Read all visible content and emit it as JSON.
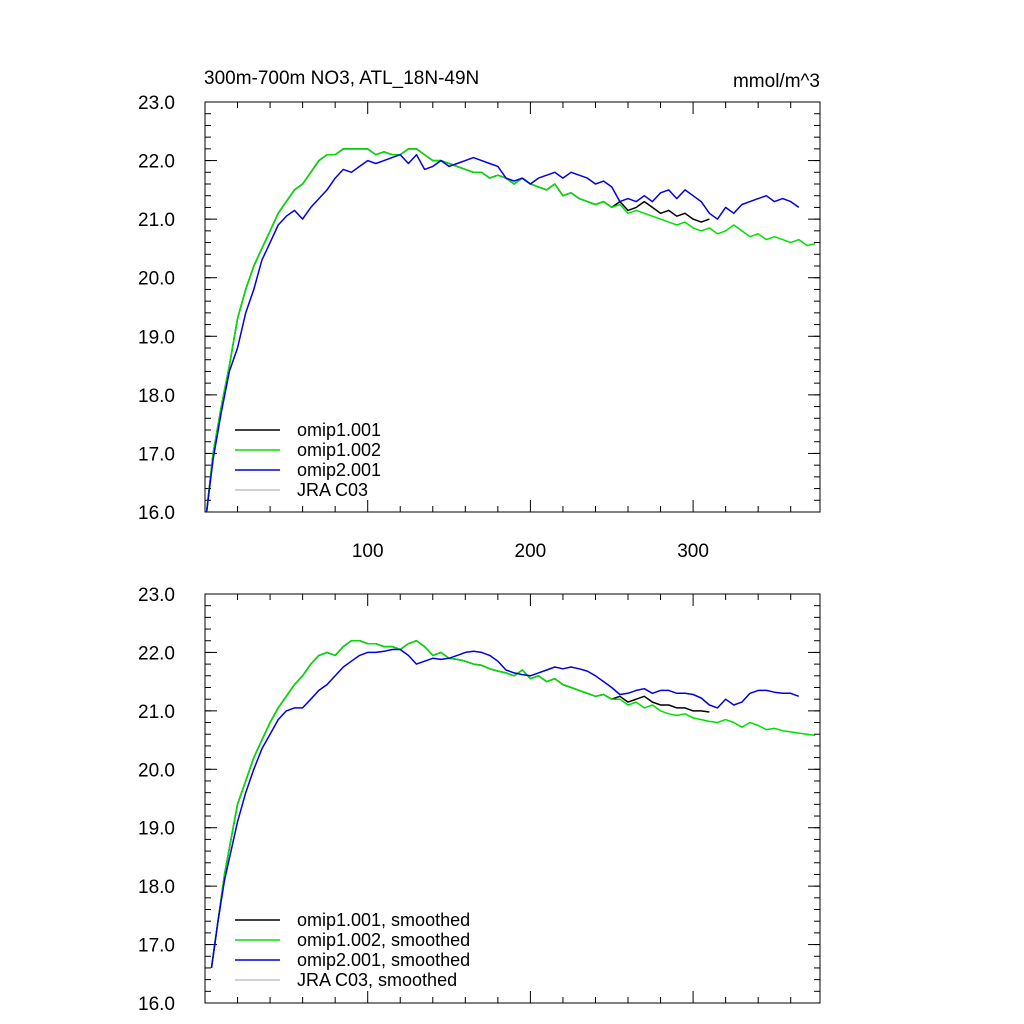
{
  "header": {
    "title": "300m-700m NO3, ATL_18N-49N",
    "units": "mmol/m^3"
  },
  "chart_data": [
    {
      "type": "line",
      "title": "300m-700m NO3, ATL_18N-49N",
      "units": "mmol/m^3",
      "xlim": [
        0,
        378
      ],
      "ylim": [
        16.0,
        23.0
      ],
      "x_ticks": [
        100,
        200,
        300
      ],
      "x_tick_labels": [
        "100",
        "200",
        "300"
      ],
      "y_ticks": [
        16.0,
        17.0,
        18.0,
        19.0,
        20.0,
        21.0,
        22.0,
        23.0
      ],
      "y_tick_labels": [
        "16.0",
        "17.0",
        "18.0",
        "19.0",
        "20.0",
        "21.0",
        "22.0",
        "23.0"
      ],
      "legend_position": "bottom-left",
      "series": [
        {
          "name": "omip1.001",
          "color": "#000000",
          "x": [
            1,
            5,
            10,
            15,
            20,
            25,
            30,
            35,
            40,
            45,
            50,
            55,
            60,
            65,
            70,
            75,
            80,
            85,
            90,
            95,
            100,
            105,
            110,
            115,
            120,
            125,
            130,
            135,
            140,
            145,
            150,
            155,
            160,
            165,
            170,
            175,
            180,
            185,
            190,
            195,
            200,
            205,
            210,
            215,
            220,
            225,
            230,
            235,
            240,
            245,
            250,
            255,
            260,
            265,
            270,
            275,
            280,
            285,
            290,
            295,
            300,
            305,
            310
          ],
          "y": [
            16.0,
            17.0,
            17.8,
            18.5,
            19.3,
            19.8,
            20.2,
            20.5,
            20.8,
            21.1,
            21.3,
            21.5,
            21.6,
            21.8,
            22.0,
            22.1,
            22.1,
            22.2,
            22.2,
            22.2,
            22.2,
            22.1,
            22.15,
            22.1,
            22.1,
            22.2,
            22.2,
            22.1,
            22.0,
            22.0,
            21.95,
            21.9,
            21.85,
            21.8,
            21.8,
            21.7,
            21.75,
            21.7,
            21.6,
            21.7,
            21.6,
            21.55,
            21.5,
            21.6,
            21.4,
            21.45,
            21.35,
            21.3,
            21.25,
            21.3,
            21.2,
            21.3,
            21.15,
            21.2,
            21.3,
            21.2,
            21.1,
            21.15,
            21.05,
            21.1,
            21.0,
            20.95,
            21.0
          ]
        },
        {
          "name": "omip1.002",
          "color": "#00e000",
          "x": [
            1,
            5,
            10,
            15,
            20,
            25,
            30,
            35,
            40,
            45,
            50,
            55,
            60,
            65,
            70,
            75,
            80,
            85,
            90,
            95,
            100,
            105,
            110,
            115,
            120,
            125,
            130,
            135,
            140,
            145,
            150,
            155,
            160,
            165,
            170,
            175,
            180,
            185,
            190,
            195,
            200,
            205,
            210,
            215,
            220,
            225,
            230,
            235,
            240,
            245,
            250,
            255,
            260,
            265,
            270,
            275,
            280,
            285,
            290,
            295,
            300,
            305,
            310,
            315,
            320,
            325,
            330,
            335,
            340,
            345,
            350,
            355,
            360,
            365,
            370,
            375
          ],
          "y": [
            16.0,
            17.0,
            17.8,
            18.5,
            19.3,
            19.8,
            20.2,
            20.5,
            20.8,
            21.1,
            21.3,
            21.5,
            21.6,
            21.8,
            22.0,
            22.1,
            22.1,
            22.2,
            22.2,
            22.2,
            22.2,
            22.1,
            22.15,
            22.1,
            22.1,
            22.2,
            22.2,
            22.1,
            22.0,
            22.0,
            21.95,
            21.9,
            21.85,
            21.8,
            21.8,
            21.7,
            21.75,
            21.7,
            21.6,
            21.7,
            21.6,
            21.55,
            21.5,
            21.6,
            21.4,
            21.45,
            21.35,
            21.3,
            21.25,
            21.3,
            21.2,
            21.25,
            21.1,
            21.15,
            21.1,
            21.05,
            21.0,
            20.95,
            20.9,
            20.95,
            20.85,
            20.8,
            20.85,
            20.75,
            20.8,
            20.9,
            20.8,
            20.7,
            20.75,
            20.65,
            20.7,
            20.65,
            20.6,
            20.65,
            20.55,
            20.58
          ]
        },
        {
          "name": "omip2.001",
          "color": "#0000e0",
          "x": [
            1,
            5,
            10,
            15,
            20,
            25,
            30,
            35,
            40,
            45,
            50,
            55,
            60,
            65,
            70,
            75,
            80,
            85,
            90,
            95,
            100,
            105,
            110,
            115,
            120,
            125,
            130,
            135,
            140,
            145,
            150,
            155,
            160,
            165,
            170,
            175,
            180,
            185,
            190,
            195,
            200,
            205,
            210,
            215,
            220,
            225,
            230,
            235,
            240,
            245,
            250,
            255,
            260,
            265,
            270,
            275,
            280,
            285,
            290,
            295,
            300,
            305,
            310,
            315,
            320,
            325,
            330,
            335,
            340,
            345,
            350,
            355,
            360,
            365
          ],
          "y": [
            16.0,
            16.9,
            17.7,
            18.4,
            18.8,
            19.4,
            19.8,
            20.3,
            20.6,
            20.9,
            21.05,
            21.15,
            21.0,
            21.2,
            21.35,
            21.5,
            21.7,
            21.85,
            21.8,
            21.9,
            22.0,
            21.95,
            22.0,
            22.05,
            22.1,
            21.95,
            22.1,
            21.85,
            21.9,
            22.0,
            21.9,
            21.95,
            22.0,
            22.05,
            22.0,
            21.95,
            21.9,
            21.7,
            21.65,
            21.7,
            21.6,
            21.7,
            21.75,
            21.8,
            21.7,
            21.8,
            21.75,
            21.7,
            21.6,
            21.65,
            21.55,
            21.3,
            21.35,
            21.3,
            21.4,
            21.3,
            21.45,
            21.5,
            21.35,
            21.5,
            21.4,
            21.3,
            21.1,
            21.0,
            21.2,
            21.1,
            21.25,
            21.3,
            21.35,
            21.4,
            21.3,
            21.35,
            21.3,
            21.2
          ]
        },
        {
          "name": "JRA C03",
          "color": "#c0c0c0",
          "x": [],
          "y": []
        }
      ]
    },
    {
      "type": "line",
      "title": "",
      "xlim": [
        0,
        378
      ],
      "ylim": [
        16.0,
        23.0
      ],
      "x_ticks": [
        100,
        200,
        300
      ],
      "x_tick_labels": [],
      "y_ticks": [
        16.0,
        17.0,
        18.0,
        19.0,
        20.0,
        21.0,
        22.0,
        23.0
      ],
      "y_tick_labels": [
        "16.0",
        "17.0",
        "18.0",
        "19.0",
        "20.0",
        "21.0",
        "22.0",
        "23.0"
      ],
      "legend_position": "bottom-left",
      "series": [
        {
          "name": "omip1.001, smoothed",
          "color": "#000000",
          "x": [
            4,
            8,
            12,
            16,
            20,
            25,
            30,
            35,
            40,
            45,
            50,
            55,
            60,
            65,
            70,
            75,
            80,
            85,
            90,
            95,
            100,
            105,
            110,
            115,
            120,
            125,
            130,
            135,
            140,
            145,
            150,
            155,
            160,
            165,
            170,
            175,
            180,
            185,
            190,
            195,
            200,
            205,
            210,
            215,
            220,
            225,
            230,
            235,
            240,
            245,
            250,
            255,
            260,
            265,
            270,
            275,
            280,
            285,
            290,
            295,
            300,
            305,
            310
          ],
          "y": [
            16.6,
            17.4,
            18.2,
            18.8,
            19.4,
            19.8,
            20.2,
            20.5,
            20.8,
            21.05,
            21.25,
            21.45,
            21.6,
            21.8,
            21.95,
            22.0,
            21.95,
            22.1,
            22.2,
            22.2,
            22.15,
            22.15,
            22.1,
            22.1,
            22.05,
            22.15,
            22.2,
            22.1,
            21.95,
            22.0,
            21.9,
            21.88,
            21.85,
            21.8,
            21.78,
            21.72,
            21.68,
            21.65,
            21.6,
            21.7,
            21.55,
            21.6,
            21.5,
            21.55,
            21.45,
            21.4,
            21.35,
            21.3,
            21.25,
            21.28,
            21.2,
            21.25,
            21.15,
            21.2,
            21.25,
            21.15,
            21.1,
            21.1,
            21.05,
            21.05,
            21.0,
            21.0,
            20.98
          ]
        },
        {
          "name": "omip1.002, smoothed",
          "color": "#00e000",
          "x": [
            4,
            8,
            12,
            16,
            20,
            25,
            30,
            35,
            40,
            45,
            50,
            55,
            60,
            65,
            70,
            75,
            80,
            85,
            90,
            95,
            100,
            105,
            110,
            115,
            120,
            125,
            130,
            135,
            140,
            145,
            150,
            155,
            160,
            165,
            170,
            175,
            180,
            185,
            190,
            195,
            200,
            205,
            210,
            215,
            220,
            225,
            230,
            235,
            240,
            245,
            250,
            255,
            260,
            265,
            270,
            275,
            280,
            285,
            290,
            295,
            300,
            305,
            310,
            315,
            320,
            325,
            330,
            335,
            340,
            345,
            350,
            355,
            360,
            365,
            370,
            375
          ],
          "y": [
            16.6,
            17.4,
            18.2,
            18.8,
            19.4,
            19.8,
            20.2,
            20.5,
            20.8,
            21.05,
            21.25,
            21.45,
            21.6,
            21.8,
            21.95,
            22.0,
            21.95,
            22.1,
            22.2,
            22.2,
            22.15,
            22.15,
            22.1,
            22.1,
            22.05,
            22.15,
            22.2,
            22.1,
            21.95,
            22.0,
            21.9,
            21.88,
            21.85,
            21.8,
            21.78,
            21.72,
            21.68,
            21.65,
            21.6,
            21.7,
            21.55,
            21.6,
            21.5,
            21.55,
            21.45,
            21.4,
            21.35,
            21.3,
            21.25,
            21.28,
            21.2,
            21.2,
            21.1,
            21.15,
            21.05,
            21.1,
            21.0,
            20.95,
            20.92,
            20.95,
            20.88,
            20.85,
            20.82,
            20.8,
            20.85,
            20.8,
            20.72,
            20.8,
            20.75,
            20.68,
            20.7,
            20.66,
            20.64,
            20.62,
            20.6,
            20.58
          ]
        },
        {
          "name": "omip2.001, smoothed",
          "color": "#0000e0",
          "x": [
            4,
            8,
            12,
            16,
            20,
            25,
            30,
            35,
            40,
            45,
            50,
            55,
            60,
            65,
            70,
            75,
            80,
            85,
            90,
            95,
            100,
            105,
            110,
            115,
            120,
            125,
            130,
            135,
            140,
            145,
            150,
            155,
            160,
            165,
            170,
            175,
            180,
            185,
            190,
            195,
            200,
            205,
            210,
            215,
            220,
            225,
            230,
            235,
            240,
            245,
            250,
            255,
            260,
            265,
            270,
            275,
            280,
            285,
            290,
            295,
            300,
            305,
            310,
            315,
            320,
            325,
            330,
            335,
            340,
            345,
            350,
            355,
            360,
            365
          ],
          "y": [
            16.6,
            17.4,
            18.1,
            18.6,
            19.1,
            19.6,
            20.0,
            20.35,
            20.6,
            20.85,
            21.0,
            21.05,
            21.05,
            21.2,
            21.35,
            21.45,
            21.6,
            21.75,
            21.85,
            21.95,
            22.0,
            22.0,
            22.02,
            22.05,
            22.05,
            21.95,
            21.8,
            21.85,
            21.9,
            21.88,
            21.9,
            21.95,
            22.0,
            22.02,
            22.0,
            21.95,
            21.85,
            21.7,
            21.65,
            21.62,
            21.6,
            21.65,
            21.7,
            21.75,
            21.72,
            21.75,
            21.72,
            21.68,
            21.6,
            21.5,
            21.4,
            21.28,
            21.3,
            21.35,
            21.38,
            21.3,
            21.35,
            21.35,
            21.3,
            21.3,
            21.28,
            21.22,
            21.1,
            21.05,
            21.2,
            21.1,
            21.15,
            21.3,
            21.35,
            21.35,
            21.32,
            21.3,
            21.3,
            21.25
          ]
        },
        {
          "name": "JRA C03, smoothed",
          "color": "#c0c0c0",
          "x": [],
          "y": []
        }
      ]
    }
  ]
}
